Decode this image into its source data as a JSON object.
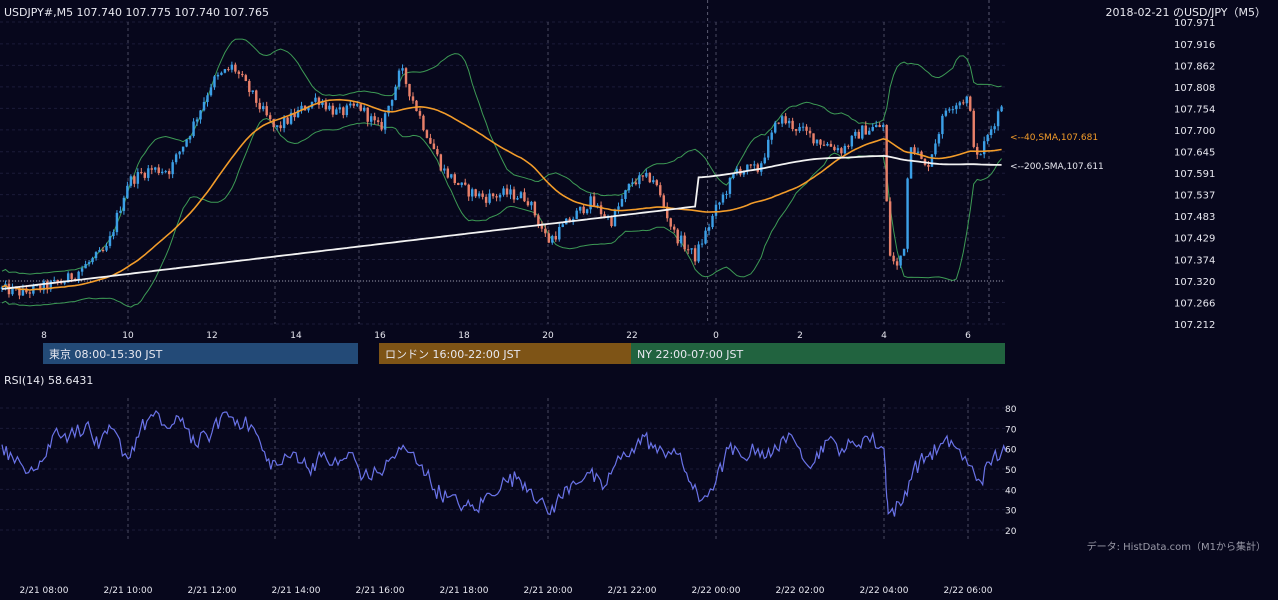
{
  "header": {
    "symbol_info": "USDJPY#,M5 107.740 107.775 107.740 107.765",
    "chart_title": "2018-02-21 のUSD/JPY（M5）"
  },
  "sessions": [
    {
      "label": "東京 08:00-15:30 JST",
      "color": "#234a77",
      "start_hour": 8.0,
      "end_hour": 15.5
    },
    {
      "label": "ロンドン 16:00-22:00 JST",
      "color": "#7e5416",
      "start_hour": 16.0,
      "end_hour": 22.0
    },
    {
      "label": "NY 22:00-07:00 JST",
      "color": "#21633f",
      "start_hour": 22.0,
      "end_hour": 31.0
    }
  ],
  "footer": {
    "data_source": "データ: HistData.com（M1から集計）"
  },
  "colors": {
    "bull": "#3c9fe6",
    "bear": "#e8806a",
    "sma40": "#f39c2a",
    "sma200": "#f2f2f2",
    "bollinger": "#3d9a55",
    "rsi": "#6a73e8",
    "background": "#07071c"
  },
  "chart_data": [
    {
      "type": "candlestick",
      "timeframe": "M5",
      "x_start": "2018-02-21 07:00 JST",
      "x_end": "2018-02-22 06:50 JST",
      "ylim": [
        107.212,
        107.971
      ],
      "y_ticks": [
        107.971,
        107.916,
        107.862,
        107.808,
        107.754,
        107.7,
        107.645,
        107.591,
        107.537,
        107.483,
        107.429,
        107.374,
        107.32,
        107.266,
        107.212
      ],
      "y_tick_labels": [
        "107.971",
        "107.916",
        "107.862",
        "107.808",
        "107.754",
        "107.700",
        "107.645",
        "107.591",
        "107.537",
        "107.483",
        "107.429",
        "107.374",
        "107.320",
        "107.266",
        "107.212"
      ],
      "x_ticks": [
        {
          "label": "8",
          "hour": 8
        },
        {
          "label": "10",
          "hour": 10
        },
        {
          "label": "12",
          "hour": 12
        },
        {
          "label": "14",
          "hour": 14
        },
        {
          "label": "16",
          "hour": 16
        },
        {
          "label": "18",
          "hour": 18
        },
        {
          "label": "20",
          "hour": 20
        },
        {
          "label": "22",
          "hour": 22
        },
        {
          "label": "0",
          "hour": 24
        },
        {
          "label": "2",
          "hour": 26
        },
        {
          "label": "4",
          "hour": 28
        },
        {
          "label": "6",
          "hour": 30
        }
      ],
      "reference_price": 107.32,
      "close_path": [
        [
          7.0,
          107.3
        ],
        [
          7.5,
          107.29
        ],
        [
          8.0,
          107.305
        ],
        [
          8.5,
          107.32
        ],
        [
          9.0,
          107.36
        ],
        [
          9.5,
          107.4
        ],
        [
          10.0,
          107.57
        ],
        [
          10.5,
          107.6
        ],
        [
          11.0,
          107.6
        ],
        [
          11.5,
          107.7
        ],
        [
          12.0,
          107.82
        ],
        [
          12.5,
          107.86
        ],
        [
          13.0,
          107.78
        ],
        [
          13.5,
          107.7
        ],
        [
          14.0,
          107.74
        ],
        [
          14.5,
          107.78
        ],
        [
          15.0,
          107.74
        ],
        [
          15.5,
          107.76
        ],
        [
          16.0,
          107.7
        ],
        [
          16.5,
          107.85
        ],
        [
          17.0,
          107.72
        ],
        [
          17.5,
          107.6
        ],
        [
          18.0,
          107.55
        ],
        [
          18.5,
          107.53
        ],
        [
          19.0,
          107.54
        ],
        [
          19.5,
          107.53
        ],
        [
          20.0,
          107.42
        ],
        [
          20.5,
          107.47
        ],
        [
          21.0,
          107.52
        ],
        [
          21.5,
          107.47
        ],
        [
          22.0,
          107.57
        ],
        [
          22.5,
          107.58
        ],
        [
          23.0,
          107.44
        ],
        [
          23.5,
          107.38
        ],
        [
          24.0,
          107.5
        ],
        [
          24.5,
          107.6
        ],
        [
          25.0,
          107.6
        ],
        [
          25.5,
          107.73
        ],
        [
          26.0,
          107.7
        ],
        [
          26.5,
          107.67
        ],
        [
          27.0,
          107.65
        ],
        [
          27.5,
          107.7
        ],
        [
          28.0,
          107.71
        ],
        [
          28.1,
          107.4
        ],
        [
          28.3,
          107.35
        ],
        [
          28.5,
          107.42
        ],
        [
          28.6,
          107.68
        ],
        [
          29.0,
          107.6
        ],
        [
          29.5,
          107.76
        ],
        [
          30.0,
          107.78
        ],
        [
          30.2,
          107.62
        ],
        [
          30.5,
          107.69
        ],
        [
          30.8,
          107.765
        ]
      ],
      "series": [
        {
          "name": "40,SMA",
          "last_value": 107.681,
          "label": "<--40,SMA,107.681"
        },
        {
          "name": "200,SMA",
          "last_value": 107.611,
          "label": "<--200,SMA,107.611"
        }
      ]
    },
    {
      "type": "line",
      "title": "RSI(14) 58.6431",
      "ylim": [
        15,
        85
      ],
      "y_ticks": [
        80,
        70,
        60,
        50,
        40,
        30,
        20
      ],
      "x_tick_labels": [
        {
          "label": "2/21 08:00",
          "hour": 8
        },
        {
          "label": "2/21 10:00",
          "hour": 10
        },
        {
          "label": "2/21 12:00",
          "hour": 12
        },
        {
          "label": "2/21 14:00",
          "hour": 14
        },
        {
          "label": "2/21 16:00",
          "hour": 16
        },
        {
          "label": "2/21 18:00",
          "hour": 18
        },
        {
          "label": "2/21 20:00",
          "hour": 20
        },
        {
          "label": "2/21 22:00",
          "hour": 22
        },
        {
          "label": "2/22 00:00",
          "hour": 24
        },
        {
          "label": "2/22 02:00",
          "hour": 26
        },
        {
          "label": "2/22 04:00",
          "hour": 28
        },
        {
          "label": "2/22 06:00",
          "hour": 30
        }
      ],
      "points": [
        [
          7.0,
          62
        ],
        [
          7.3,
          53
        ],
        [
          7.7,
          51
        ],
        [
          8.0,
          55
        ],
        [
          8.3,
          70
        ],
        [
          8.6,
          66
        ],
        [
          9.0,
          72
        ],
        [
          9.3,
          60
        ],
        [
          9.6,
          70
        ],
        [
          10.0,
          55
        ],
        [
          10.3,
          70
        ],
        [
          10.6,
          76
        ],
        [
          11.0,
          70
        ],
        [
          11.3,
          75
        ],
        [
          11.6,
          62
        ],
        [
          12.0,
          68
        ],
        [
          12.3,
          78
        ],
        [
          12.6,
          74
        ],
        [
          13.0,
          70
        ],
        [
          13.3,
          54
        ],
        [
          13.6,
          52
        ],
        [
          14.0,
          58
        ],
        [
          14.3,
          50
        ],
        [
          14.6,
          56
        ],
        [
          15.0,
          52
        ],
        [
          15.3,
          58
        ],
        [
          15.6,
          46
        ],
        [
          16.0,
          48
        ],
        [
          16.3,
          56
        ],
        [
          16.6,
          60
        ],
        [
          17.0,
          52
        ],
        [
          17.3,
          40
        ],
        [
          17.6,
          36
        ],
        [
          18.0,
          32
        ],
        [
          18.3,
          30
        ],
        [
          18.6,
          38
        ],
        [
          19.0,
          44
        ],
        [
          19.3,
          46
        ],
        [
          19.6,
          40
        ],
        [
          20.0,
          28
        ],
        [
          20.3,
          36
        ],
        [
          20.6,
          44
        ],
        [
          21.0,
          48
        ],
        [
          21.3,
          40
        ],
        [
          21.6,
          52
        ],
        [
          22.0,
          60
        ],
        [
          22.3,
          66
        ],
        [
          22.6,
          58
        ],
        [
          23.0,
          60
        ],
        [
          23.3,
          48
        ],
        [
          23.6,
          34
        ],
        [
          24.0,
          44
        ],
        [
          24.3,
          60
        ],
        [
          24.6,
          56
        ],
        [
          25.0,
          60
        ],
        [
          25.3,
          56
        ],
        [
          25.6,
          66
        ],
        [
          26.0,
          60
        ],
        [
          26.3,
          52
        ],
        [
          26.6,
          64
        ],
        [
          27.0,
          60
        ],
        [
          27.3,
          62
        ],
        [
          27.6,
          66
        ],
        [
          28.0,
          60
        ],
        [
          28.1,
          28
        ],
        [
          28.4,
          32
        ],
        [
          28.7,
          50
        ],
        [
          29.0,
          56
        ],
        [
          29.3,
          60
        ],
        [
          29.6,
          64
        ],
        [
          30.0,
          52
        ],
        [
          30.3,
          44
        ],
        [
          30.6,
          56
        ],
        [
          30.9,
          58.6
        ]
      ]
    }
  ]
}
